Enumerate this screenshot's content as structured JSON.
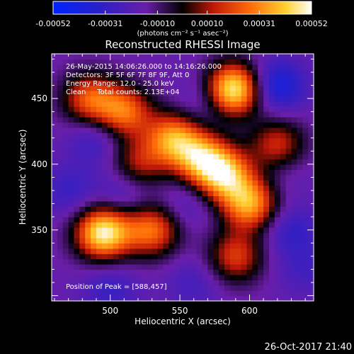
{
  "chart_data": {
    "type": "heatmap",
    "title": "Reconstructed RHESSI Image",
    "xlabel": "Heliocentric X (arcsec)",
    "ylabel": "Heliocentric Y (arcsec)",
    "xlim": [
      458,
      646
    ],
    "ylim": [
      296,
      484
    ],
    "x_ticks": [
      500,
      550,
      600
    ],
    "y_ticks": [
      350,
      400,
      450
    ],
    "colorbar": {
      "min": -0.00052,
      "max": 0.00052,
      "tick_values": [
        -0.00052,
        -0.00031,
        -0.0001,
        0.0001,
        0.00031,
        0.00052
      ],
      "tick_labels": [
        "-0.00052",
        "-0.00031",
        "-0.00010",
        "0.00010",
        "0.00031",
        "0.00052"
      ],
      "unit_label": "(photons cm⁻² s⁻¹ asec⁻²)"
    },
    "info_lines": [
      "26-May-2015 14:06:26.000 to 14:16:26.000",
      "Detectors: 3F 5F 6F 7F 8F 9F, Att 0",
      "Energy Range: 12.0 - 25.0 keV",
      "Clean     Total counts: 2.13E+04"
    ],
    "peak_text": "Position of Peak = [588,457]",
    "peak_position": [
      588,
      457
    ],
    "timestamp": "26-Oct-2017 21:40",
    "sources": [
      {
        "x": 588,
        "y": 457,
        "value": 0.00052
      },
      {
        "x": 495,
        "y": 348,
        "value": 0.00049
      },
      {
        "x": 582,
        "y": 392,
        "value": 0.00036
      },
      {
        "x": 600,
        "y": 370,
        "value": 0.00034
      },
      {
        "x": 545,
        "y": 420,
        "value": 0.0003
      },
      {
        "x": 565,
        "y": 405,
        "value": 0.0003
      },
      {
        "x": 510,
        "y": 440,
        "value": 0.00026
      },
      {
        "x": 530,
        "y": 350,
        "value": 0.00026
      },
      {
        "x": 485,
        "y": 450,
        "value": 0.00022
      },
      {
        "x": 590,
        "y": 330,
        "value": 0.00018
      },
      {
        "x": 620,
        "y": 415,
        "value": 0.00016
      },
      {
        "x": 520,
        "y": 400,
        "value": 0.00012
      },
      {
        "x": 490,
        "y": 420,
        "value": -0.00031
      },
      {
        "x": 570,
        "y": 450,
        "value": -0.00029
      },
      {
        "x": 620,
        "y": 460,
        "value": -0.00042
      },
      {
        "x": 510,
        "y": 380,
        "value": -0.0003
      },
      {
        "x": 555,
        "y": 370,
        "value": -0.00026
      },
      {
        "x": 470,
        "y": 380,
        "value": -0.00029
      },
      {
        "x": 630,
        "y": 350,
        "value": -0.00031
      },
      {
        "x": 500,
        "y": 305,
        "value": -0.00029
      },
      {
        "x": 560,
        "y": 310,
        "value": -0.00026
      },
      {
        "x": 640,
        "y": 320,
        "value": -0.00026
      },
      {
        "x": 625,
        "y": 395,
        "value": -0.00022
      }
    ]
  }
}
